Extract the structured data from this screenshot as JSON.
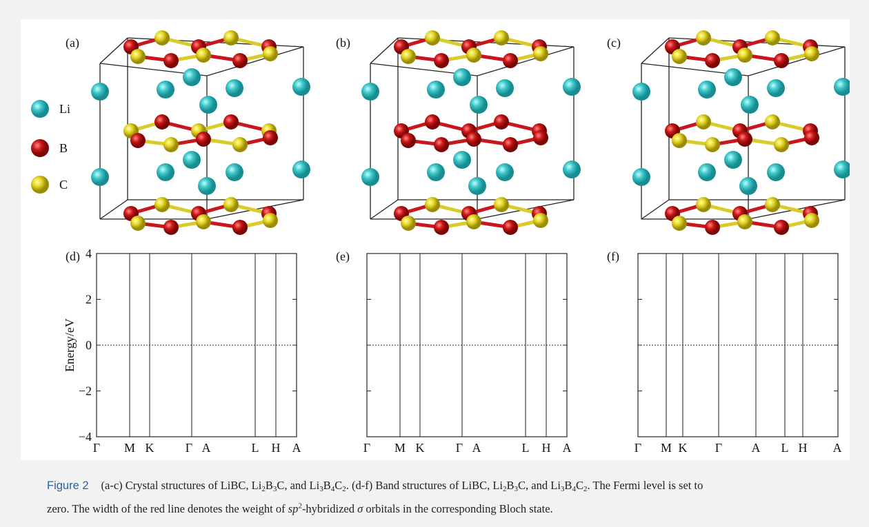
{
  "structures": {
    "panel_labels": [
      "(a)",
      "(b)",
      "(c)"
    ],
    "legend": [
      "Li",
      "B",
      "C"
    ]
  },
  "bands": {
    "panel_labels": [
      "(d)",
      "(e)",
      "(f)"
    ],
    "y_label": "Energy/eV",
    "ylim": [
      -4,
      4
    ],
    "yticks": [
      4,
      2,
      0,
      {
        "value": -2,
        "label": "−2"
      },
      {
        "value": -4,
        "label": "−4"
      }
    ],
    "kpath": [
      [
        "Γ",
        "M",
        "K",
        "Γ",
        "A",
        "L",
        "H",
        "A"
      ],
      [
        "Γ",
        "M",
        "K",
        "Γ",
        "A",
        "L",
        "H",
        "A"
      ],
      [
        "Γ",
        "M",
        "K",
        "Γ",
        "A",
        "L",
        "H",
        "A"
      ]
    ]
  },
  "caption": {
    "label": "Figure 2",
    "runs": [
      "(a-c) Crystal structures of LiBC, Li",
      "2",
      "B",
      "3",
      "C, and Li",
      "3",
      "B",
      "4",
      "C",
      "2",
      ". (d-f) Band structures of LiBC, Li",
      "2",
      "B",
      "3",
      "C, and Li",
      "3",
      "B",
      "4",
      "C",
      "2",
      ". The Fermi level is set to",
      "zero. The width of the red line denotes the weight of ",
      "sp",
      "2",
      "-hybridized ",
      "σ",
      " orbitals in the corresponding Bloch state."
    ]
  }
}
